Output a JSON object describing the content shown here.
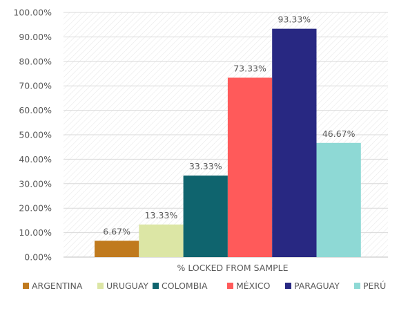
{
  "chart_data": {
    "type": "bar",
    "title": "",
    "xlabel": "",
    "ylabel": "",
    "categories": [
      "% LOCKED FROM SAMPLE"
    ],
    "series": [
      {
        "name": "ARGENTINA",
        "value": 6.67,
        "label": "6.67%",
        "color": "#C07A1E"
      },
      {
        "name": "URUGUAY",
        "value": 13.33,
        "label": "13.33%",
        "color": "#DCE6A5"
      },
      {
        "name": "COLOMBIA",
        "value": 33.33,
        "label": "33.33%",
        "color": "#0F646E"
      },
      {
        "name": "MÉXICO",
        "value": 73.33,
        "label": "73.33%",
        "color": "#FF5A5A"
      },
      {
        "name": "PARAGUAY",
        "value": 93.33,
        "label": "93.33%",
        "color": "#282882"
      },
      {
        "name": "PERÚ",
        "value": 46.67,
        "label": "46.67%",
        "color": "#8ED9D5"
      }
    ],
    "ylim": [
      0,
      100
    ],
    "yticks": [
      "0.00%",
      "10.00%",
      "20.00%",
      "30.00%",
      "40.00%",
      "50.00%",
      "60.00%",
      "70.00%",
      "80.00%",
      "90.00%",
      "100.00%"
    ],
    "grid": true,
    "legend_position": "bottom"
  }
}
